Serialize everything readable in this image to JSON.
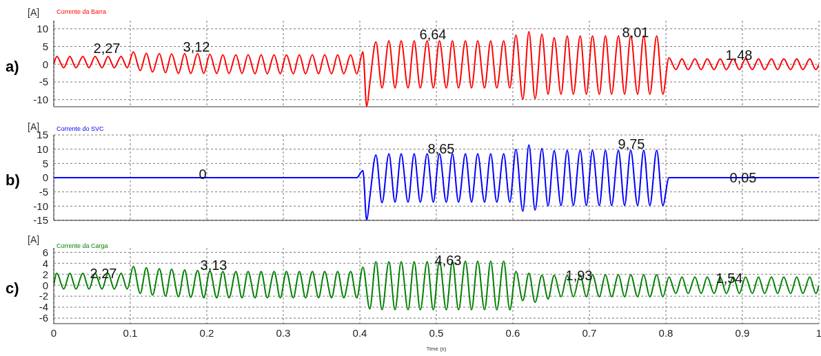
{
  "chart_data": [
    {
      "type": "line",
      "title": "a)",
      "ylabel": "[A]",
      "xlim": [
        0,
        1
      ],
      "xticks": [
        0,
        0.1,
        0.2,
        0.3,
        0.4,
        0.5,
        0.6,
        0.7,
        0.8,
        0.9,
        1
      ],
      "ylim": [
        -12,
        12.3
      ],
      "yticks": [
        -10,
        -5,
        0,
        5,
        10
      ],
      "grid": true,
      "legend": "top left",
      "tick_labels": "y",
      "series": [
        {
          "name": "Corrente da Barra",
          "color": "#ff0000",
          "x": [
            0,
            0.004,
            0.013,
            0.021,
            0.029,
            0.038,
            0.046,
            0.054,
            0.063,
            0.071,
            0.079,
            0.088,
            0.096,
            0.104,
            0.113,
            0.121,
            0.129,
            0.138,
            0.146,
            0.154,
            0.163,
            0.171,
            0.179,
            0.188,
            0.196,
            0.204,
            0.213,
            0.221,
            0.229,
            0.238,
            0.246,
            0.254,
            0.263,
            0.271,
            0.279,
            0.288,
            0.296,
            0.304,
            0.313,
            0.321,
            0.329,
            0.338,
            0.346,
            0.354,
            0.363,
            0.371,
            0.379,
            0.388,
            0.396,
            0.404,
            0.409,
            0.413,
            0.421,
            0.429,
            0.438,
            0.446,
            0.454,
            0.463,
            0.471,
            0.479,
            0.488,
            0.496,
            0.504,
            0.513,
            0.521,
            0.529,
            0.538,
            0.546,
            0.554,
            0.563,
            0.571,
            0.579,
            0.588,
            0.596,
            0.604,
            0.613,
            0.621,
            0.629,
            0.638,
            0.646,
            0.654,
            0.663,
            0.671,
            0.679,
            0.688,
            0.696,
            0.704,
            0.713,
            0.721,
            0.729,
            0.738,
            0.746,
            0.754,
            0.763,
            0.771,
            0.779,
            0.788,
            0.796,
            0.804,
            0.813,
            0.821,
            0.829,
            0.838,
            0.846,
            0.854,
            0.863,
            0.871,
            0.879,
            0.888,
            0.896,
            0.904,
            0.913,
            0.921,
            0.929,
            0.938,
            0.946,
            0.954,
            0.963,
            0.971,
            0.979,
            0.988,
            0.996,
            1
          ],
          "values": [
            0,
            2.2,
            -1.0,
            2.2,
            -1.0,
            2.2,
            -1.0,
            2.2,
            -1.0,
            2.2,
            -1.0,
            2.2,
            -1.0,
            3.5,
            -1.8,
            3.1,
            -2.2,
            3.0,
            -2.4,
            2.9,
            -2.6,
            3.0,
            -2.6,
            3.0,
            -2.6,
            2.8,
            -2.6,
            2.7,
            -2.6,
            2.7,
            -2.6,
            2.7,
            -2.7,
            2.7,
            -2.7,
            2.7,
            -2.7,
            2.7,
            -2.7,
            2.7,
            -2.7,
            2.7,
            -2.7,
            2.7,
            -2.7,
            2.7,
            -2.7,
            2.7,
            -2.7,
            3.5,
            -12,
            -5.5,
            6.3,
            -6.7,
            6.6,
            -6.7,
            6.6,
            -6.7,
            6.6,
            -6.7,
            6.6,
            -6.7,
            6.6,
            -6.7,
            6.6,
            -6.7,
            6.6,
            -6.7,
            6.6,
            -6.7,
            6.6,
            -6.7,
            6.6,
            -6.7,
            8.2,
            -9.9,
            9.2,
            -9.7,
            8.5,
            -8.5,
            7.5,
            -8.5,
            8.0,
            -8.5,
            8.0,
            -8.5,
            8.0,
            -8.5,
            8.0,
            -8.5,
            8.0,
            -8.5,
            8.0,
            -8.5,
            8.0,
            -8.5,
            8.0,
            -8.5,
            1.8,
            -1.5,
            1.5,
            -1.5,
            1.5,
            -1.5,
            1.5,
            -1.5,
            1.5,
            -1.5,
            1.5,
            -1.5,
            1.5,
            -1.5,
            1.5,
            -1.5,
            1.5,
            -1.5,
            1.5,
            -1.5,
            1.5,
            -1.5,
            1.5,
            -1.5,
            0
          ]
        }
      ],
      "annotations": [
        "2,27",
        "3,12",
        "6,64",
        "8,01",
        "1,48"
      ]
    },
    {
      "type": "line",
      "title": "b)",
      "ylabel": "[A]",
      "xlim": [
        0,
        1
      ],
      "xticks": [
        0,
        0.1,
        0.2,
        0.3,
        0.4,
        0.5,
        0.6,
        0.7,
        0.8,
        0.9,
        1
      ],
      "ylim": [
        -15,
        15
      ],
      "yticks": [
        -15,
        -10,
        -5,
        0,
        5,
        10,
        15
      ],
      "grid": true,
      "legend": "top left",
      "tick_labels": "y",
      "series": [
        {
          "name": "Corrente do SVC",
          "color": "#0000ff",
          "x": [
            0,
            0.004,
            0.013,
            0.021,
            0.029,
            0.038,
            0.046,
            0.054,
            0.063,
            0.071,
            0.079,
            0.088,
            0.096,
            0.104,
            0.113,
            0.121,
            0.129,
            0.138,
            0.146,
            0.154,
            0.163,
            0.171,
            0.179,
            0.188,
            0.196,
            0.204,
            0.213,
            0.221,
            0.229,
            0.238,
            0.246,
            0.254,
            0.263,
            0.271,
            0.279,
            0.288,
            0.296,
            0.304,
            0.313,
            0.321,
            0.329,
            0.338,
            0.346,
            0.354,
            0.363,
            0.371,
            0.379,
            0.388,
            0.396,
            0.404,
            0.409,
            0.413,
            0.421,
            0.429,
            0.438,
            0.446,
            0.454,
            0.463,
            0.471,
            0.479,
            0.488,
            0.496,
            0.504,
            0.513,
            0.521,
            0.529,
            0.538,
            0.546,
            0.554,
            0.563,
            0.571,
            0.579,
            0.588,
            0.596,
            0.604,
            0.613,
            0.621,
            0.629,
            0.638,
            0.646,
            0.654,
            0.663,
            0.671,
            0.679,
            0.688,
            0.696,
            0.704,
            0.713,
            0.721,
            0.729,
            0.738,
            0.746,
            0.754,
            0.763,
            0.771,
            0.779,
            0.788,
            0.796,
            0.804,
            0.813,
            0.821,
            0.829,
            0.838,
            0.846,
            0.854,
            0.863,
            0.871,
            0.879,
            0.888,
            0.896,
            0.904,
            0.913,
            0.921,
            0.929,
            0.938,
            0.946,
            0.954,
            0.963,
            0.971,
            0.979,
            0.988,
            0.996,
            1
          ],
          "values": [
            0,
            0,
            0,
            0,
            0,
            0,
            0,
            0,
            0,
            0,
            0,
            0,
            0,
            0,
            0,
            0,
            0,
            0,
            0,
            0,
            0,
            0,
            0,
            0,
            0,
            0,
            0,
            0,
            0,
            0,
            0,
            0,
            0,
            0,
            0,
            0,
            0,
            0,
            0,
            0,
            0,
            0,
            0,
            0,
            0,
            0,
            0,
            0,
            0,
            2.5,
            -15,
            -7,
            8.0,
            -8.8,
            8.4,
            -8.6,
            8.4,
            -8.6,
            8.4,
            -8.6,
            8.4,
            -8.6,
            8.4,
            -8.6,
            8.4,
            -8.6,
            8.4,
            -8.6,
            8.4,
            -8.6,
            8.4,
            -8.6,
            8.4,
            -8.6,
            10.0,
            -11.8,
            11.5,
            -11.4,
            10.3,
            -10.0,
            9.5,
            -9.8,
            9.6,
            -9.8,
            9.6,
            -9.8,
            9.6,
            -9.8,
            9.6,
            -9.8,
            9.6,
            -9.8,
            9.6,
            -9.8,
            9.6,
            -9.8,
            9.6,
            -9.8,
            0,
            0,
            0,
            0,
            0,
            0,
            0,
            0,
            0,
            0,
            0,
            0,
            0,
            0,
            0,
            0,
            0,
            0,
            0,
            0,
            0,
            0,
            0,
            0,
            0
          ]
        }
      ],
      "annotations": [
        "0",
        "8,65",
        "9,75",
        "0,05"
      ]
    },
    {
      "type": "line",
      "title": "c)",
      "ylabel": "[A]",
      "xlabel": "Time (s)",
      "xlim": [
        0,
        1
      ],
      "xticks": [
        0,
        0.1,
        0.2,
        0.3,
        0.4,
        0.5,
        0.6,
        0.7,
        0.8,
        0.9,
        1
      ],
      "ylim": [
        -7,
        6.8
      ],
      "yticks": [
        -6,
        -4,
        -2,
        0,
        2,
        4,
        6
      ],
      "grid": true,
      "legend": "top left",
      "series": [
        {
          "name": "Corrente da Carga",
          "color": "#008000",
          "x": [
            0,
            0.004,
            0.013,
            0.021,
            0.029,
            0.038,
            0.046,
            0.054,
            0.063,
            0.071,
            0.079,
            0.088,
            0.096,
            0.104,
            0.113,
            0.121,
            0.129,
            0.138,
            0.146,
            0.154,
            0.163,
            0.171,
            0.179,
            0.188,
            0.196,
            0.204,
            0.213,
            0.221,
            0.229,
            0.238,
            0.246,
            0.254,
            0.263,
            0.271,
            0.279,
            0.288,
            0.296,
            0.304,
            0.313,
            0.321,
            0.329,
            0.338,
            0.346,
            0.354,
            0.363,
            0.371,
            0.379,
            0.388,
            0.396,
            0.404,
            0.413,
            0.421,
            0.429,
            0.438,
            0.446,
            0.454,
            0.463,
            0.471,
            0.479,
            0.488,
            0.496,
            0.504,
            0.513,
            0.521,
            0.529,
            0.538,
            0.546,
            0.554,
            0.563,
            0.571,
            0.579,
            0.588,
            0.596,
            0.604,
            0.613,
            0.621,
            0.629,
            0.638,
            0.646,
            0.654,
            0.663,
            0.671,
            0.679,
            0.688,
            0.696,
            0.704,
            0.713,
            0.721,
            0.729,
            0.738,
            0.746,
            0.754,
            0.763,
            0.771,
            0.779,
            0.788,
            0.796,
            0.804,
            0.813,
            0.821,
            0.829,
            0.838,
            0.846,
            0.854,
            0.863,
            0.871,
            0.879,
            0.888,
            0.896,
            0.904,
            0.913,
            0.921,
            0.929,
            0.938,
            0.946,
            0.954,
            0.963,
            0.971,
            0.979,
            0.988,
            0.996,
            1
          ],
          "values": [
            0,
            2.2,
            -0.7,
            2.2,
            -0.7,
            2.2,
            -0.7,
            2.2,
            -0.7,
            2.2,
            -0.7,
            2.2,
            -0.7,
            3.4,
            -1.5,
            3.2,
            -1.8,
            3.0,
            -2.0,
            2.9,
            -2.1,
            2.8,
            -2.2,
            2.7,
            -2.3,
            2.6,
            -2.3,
            2.5,
            -2.3,
            2.5,
            -2.3,
            2.5,
            -2.3,
            2.5,
            -2.3,
            2.5,
            -2.3,
            2.5,
            -2.3,
            2.5,
            -2.3,
            2.5,
            -2.3,
            2.5,
            -2.3,
            2.5,
            -2.3,
            2.5,
            -2.3,
            3.3,
            -4.3,
            4.3,
            -4.5,
            4.3,
            -4.5,
            4.3,
            -4.5,
            4.3,
            -4.5,
            4.3,
            -4.5,
            4.4,
            -4.5,
            4.4,
            -4.5,
            4.4,
            -4.5,
            4.4,
            -4.5,
            4.4,
            -4.5,
            4.4,
            -4.5,
            2.5,
            -2.8,
            2.2,
            -3.1,
            1.8,
            -2.5,
            1.8,
            -2.1,
            1.8,
            -2.1,
            1.8,
            -2.1,
            1.9,
            -2.1,
            1.9,
            -2.1,
            1.9,
            -2.1,
            1.9,
            -2.1,
            1.9,
            -2.1,
            1.9,
            -2.1,
            1.5,
            -1.5,
            1.5,
            -1.5,
            1.5,
            -1.5,
            1.5,
            -1.5,
            1.5,
            -1.5,
            1.5,
            -1.5,
            1.5,
            -1.5,
            1.5,
            -1.5,
            1.5,
            -1.5,
            1.5,
            -1.5,
            1.5,
            -1.5,
            1.5,
            -1.5,
            0
          ]
        }
      ],
      "annotations": [
        "2,27",
        "3,13",
        "4,63",
        "1,93",
        "1,54"
      ]
    }
  ]
}
